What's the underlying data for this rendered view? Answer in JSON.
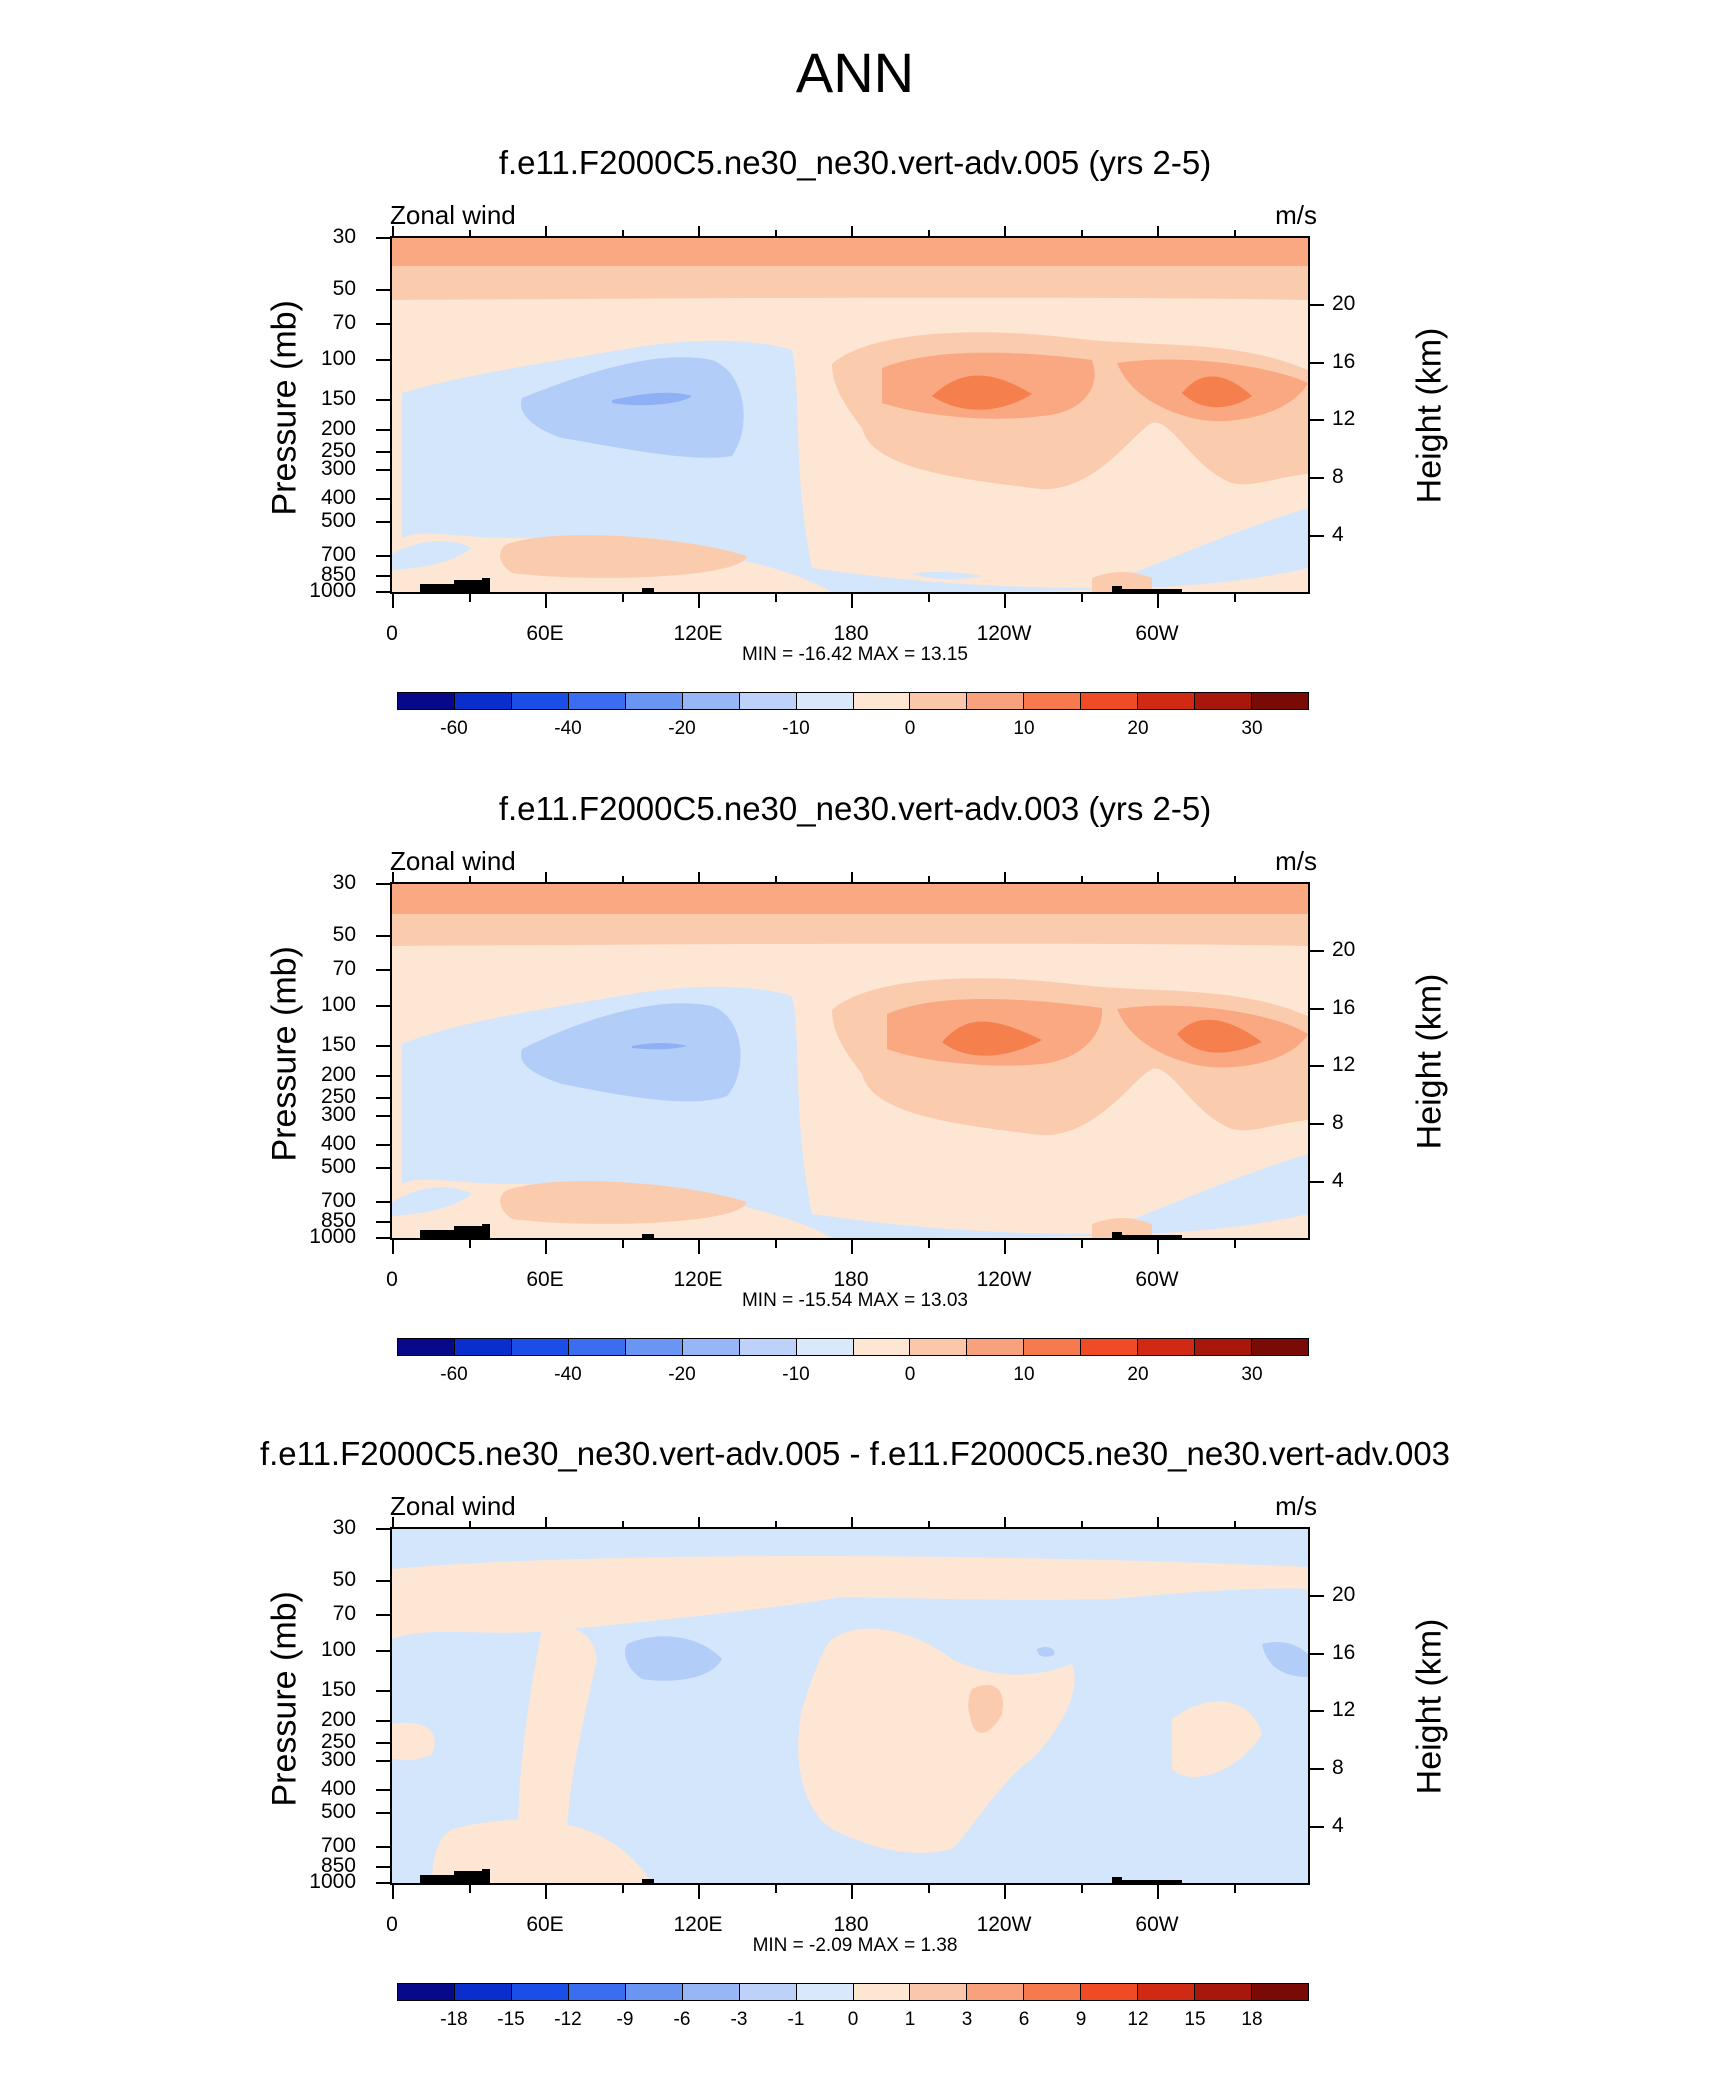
{
  "title": "ANN",
  "chart_data": [
    {
      "type": "heatmap",
      "title": "f.e11.F2000C5.ne30_ne30.vert-adv.005 (yrs 2-5)",
      "left_string": "Zonal wind",
      "right_string": "m/s",
      "xlabel": "",
      "ylabel": "Pressure (mb)",
      "ylabel_right": "Height (km)",
      "x_ticks": [
        "0",
        "60E",
        "120E",
        "180",
        "120W",
        "60W"
      ],
      "y_ticks": [
        "30",
        "50",
        "70",
        "100",
        "150",
        "200",
        "250",
        "300",
        "400",
        "500",
        "700",
        "850",
        "1000"
      ],
      "y_ticks_right": [
        "20",
        "16",
        "12",
        "8",
        "4"
      ],
      "min_max": "MIN = -16.42  MAX =  13.15",
      "min": -16.42,
      "max": 13.15,
      "colorbar_labels": [
        "-60",
        "-40",
        "-20",
        "-10",
        "0",
        "10",
        "20",
        "30"
      ]
    },
    {
      "type": "heatmap",
      "title": "f.e11.F2000C5.ne30_ne30.vert-adv.003 (yrs 2-5)",
      "left_string": "Zonal wind",
      "right_string": "m/s",
      "xlabel": "",
      "ylabel": "Pressure (mb)",
      "ylabel_right": "Height (km)",
      "x_ticks": [
        "0",
        "60E",
        "120E",
        "180",
        "120W",
        "60W"
      ],
      "y_ticks": [
        "30",
        "50",
        "70",
        "100",
        "150",
        "200",
        "250",
        "300",
        "400",
        "500",
        "700",
        "850",
        "1000"
      ],
      "y_ticks_right": [
        "20",
        "16",
        "12",
        "8",
        "4"
      ],
      "min_max": "MIN = -15.54  MAX =  13.03",
      "min": -15.54,
      "max": 13.03,
      "colorbar_labels": [
        "-60",
        "-40",
        "-20",
        "-10",
        "0",
        "10",
        "20",
        "30"
      ]
    },
    {
      "type": "heatmap",
      "title": "f.e11.F2000C5.ne30_ne30.vert-adv.005 - f.e11.F2000C5.ne30_ne30.vert-adv.003",
      "left_string": "Zonal wind",
      "right_string": "m/s",
      "xlabel": "",
      "ylabel": "Pressure (mb)",
      "ylabel_right": "Height (km)",
      "x_ticks": [
        "0",
        "60E",
        "120E",
        "180",
        "120W",
        "60W"
      ],
      "y_ticks": [
        "30",
        "50",
        "70",
        "100",
        "150",
        "200",
        "250",
        "300",
        "400",
        "500",
        "700",
        "850",
        "1000"
      ],
      "y_ticks_right": [
        "20",
        "16",
        "12",
        "8",
        "4"
      ],
      "min_max": "MIN =  -2.09  MAX =   1.38",
      "min": -2.09,
      "max": 1.38,
      "colorbar_labels": [
        "-18",
        "-15",
        "-12",
        "-9",
        "-6",
        "-3",
        "-1",
        "0",
        "1",
        "3",
        "6",
        "9",
        "12",
        "15",
        "18"
      ]
    }
  ],
  "colors": {
    "colorbar": [
      "#08088a",
      "#0a2ecc",
      "#1a4ee6",
      "#3a6df0",
      "#6b95f2",
      "#97b6f6",
      "#bdd1f9",
      "#dae8fb",
      "#fde6d2",
      "#fbc7ab",
      "#f9a07c",
      "#f77a4e",
      "#ef4b24",
      "#d12a14",
      "#a8170c",
      "#7a0a05"
    ],
    "light_blue": "#d4e6fb",
    "mid_blue": "#b3cdf9",
    "blue": "#8fb0f4",
    "peach": "#fde7d4",
    "light_orange": "#fbcbae",
    "orange": "#f9a882",
    "dark_orange": "#f5804e",
    "topo": "#000000"
  }
}
